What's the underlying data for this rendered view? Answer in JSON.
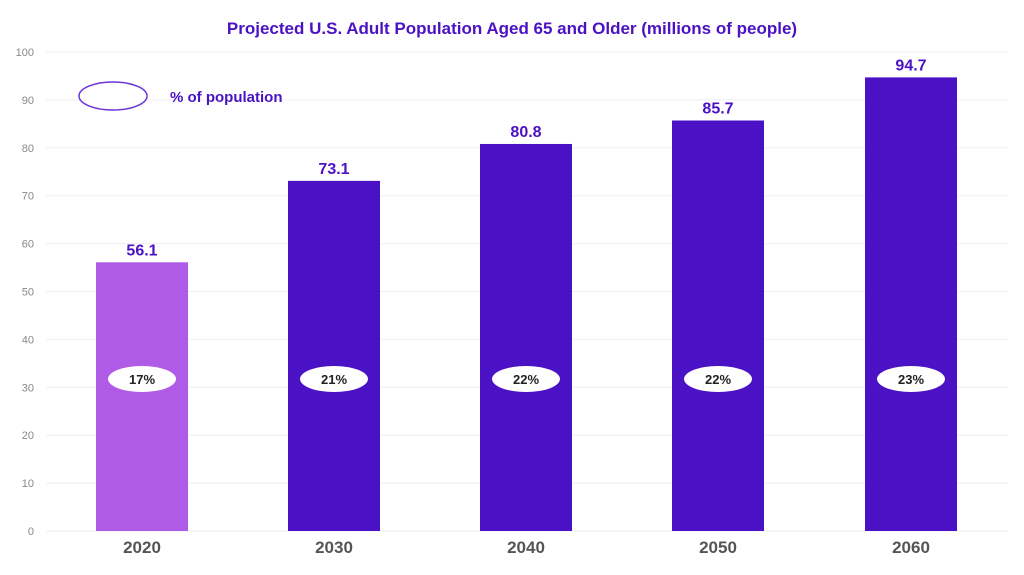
{
  "chart_data": {
    "type": "bar",
    "title": "Projected U.S. Adult Population Aged 65 and Older (millions of people)",
    "xlabel": "",
    "ylabel": "",
    "ylim": [
      0,
      100
    ],
    "yticks": [
      0,
      10,
      20,
      30,
      40,
      50,
      60,
      70,
      80,
      90,
      100
    ],
    "grid": true,
    "categories": [
      "2020",
      "2030",
      "2040",
      "2050",
      "2060"
    ],
    "values": [
      56.1,
      73.1,
      80.8,
      85.7,
      94.7
    ],
    "value_labels": [
      "56.1",
      "73.1",
      "80.8",
      "85.7",
      "94.7"
    ],
    "percent_labels": [
      "17%",
      "21%",
      "22%",
      "22%",
      "23%"
    ],
    "bar_colors": [
      "#b05ae8",
      "#4a12c4",
      "#4a12c4",
      "#4a12c4",
      "#4a12c4"
    ],
    "legend": {
      "label": "% of population",
      "placement": "top-left",
      "marker": "ellipse-outline",
      "color": "#6a35d9"
    }
  }
}
